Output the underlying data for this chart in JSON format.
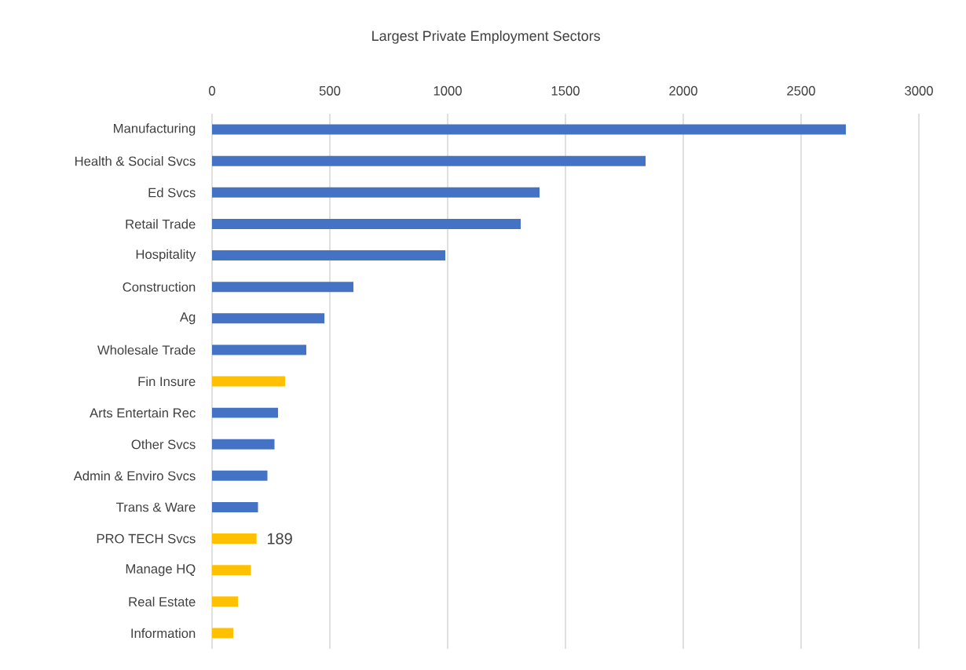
{
  "chart_data": {
    "type": "bar",
    "orientation": "horizontal",
    "title": "Largest Private Employment Sectors",
    "categories": [
      "Manufacturing",
      "Health & Social Svcs",
      "Ed Svcs",
      "Retail Trade",
      "Hospitality",
      "Construction",
      "Ag",
      "Wholesale Trade",
      "Fin Insure",
      "Arts Entertain Rec",
      "Other Svcs",
      "Admin & Enviro Svcs",
      "Trans & Ware",
      "PRO TECH Svcs",
      "Manage HQ",
      "Real Estate",
      "Information"
    ],
    "values": [
      2690,
      1840,
      1390,
      1310,
      990,
      600,
      477,
      400,
      310,
      280,
      265,
      235,
      195,
      189,
      165,
      110,
      90
    ],
    "colors": [
      "#4472c4",
      "#4472c4",
      "#4472c4",
      "#4472c4",
      "#4472c4",
      "#4472c4",
      "#4472c4",
      "#4472c4",
      "#ffc000",
      "#4472c4",
      "#4472c4",
      "#4472c4",
      "#4472c4",
      "#ffc000",
      "#ffc000",
      "#ffc000",
      "#ffc000"
    ],
    "value_labels": [
      null,
      null,
      null,
      null,
      null,
      null,
      null,
      null,
      null,
      null,
      null,
      null,
      null,
      "189",
      null,
      null,
      null
    ],
    "xlim": [
      0,
      3000
    ],
    "xticks": [
      0,
      500,
      1000,
      1500,
      2000,
      2500,
      3000
    ],
    "grid": "x"
  }
}
